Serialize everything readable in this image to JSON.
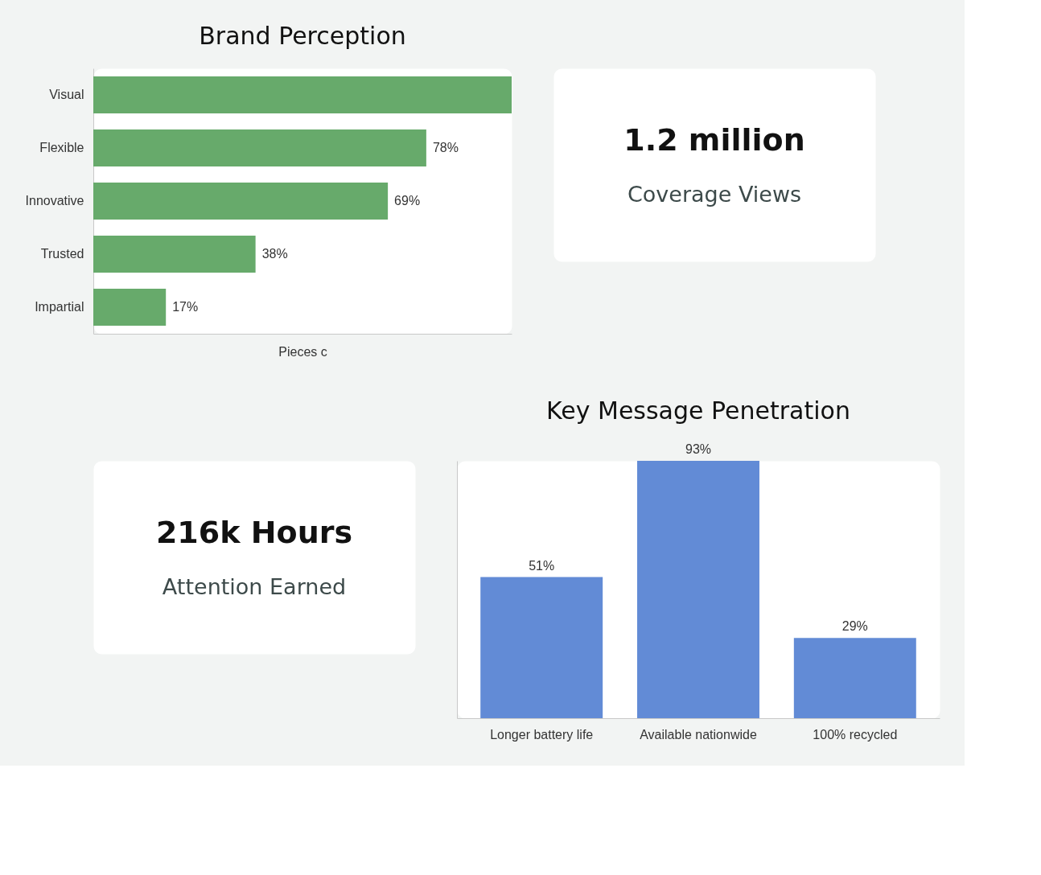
{
  "chart_data": [
    {
      "type": "bar",
      "title": "Brand Perception",
      "orientation": "horizontal",
      "categories": [
        "Visual",
        "Flexible",
        "Innovative",
        "Trusted",
        "Impartial"
      ],
      "values": [
        98,
        78,
        69,
        38,
        17
      ],
      "value_labels": [
        null,
        "78%",
        "69%",
        "38%",
        "17%"
      ],
      "color": "#67aa6b",
      "xlabel": "Pieces c",
      "tick_labels": "y"
    },
    {
      "type": "other",
      "title": "1.2 million",
      "subtitle": "Coverage Views"
    },
    {
      "type": "other",
      "title": "216k Hours",
      "subtitle": "Attention Earned"
    },
    {
      "type": "bar",
      "title": "Key Message Penetration",
      "categories": [
        "Longer battery life",
        "Available nationwide",
        "100% recycled"
      ],
      "values": [
        51,
        93,
        29
      ],
      "value_labels": [
        "51%",
        "93%",
        "29%"
      ],
      "color": "#628bd6",
      "tick_labels": "x"
    }
  ]
}
